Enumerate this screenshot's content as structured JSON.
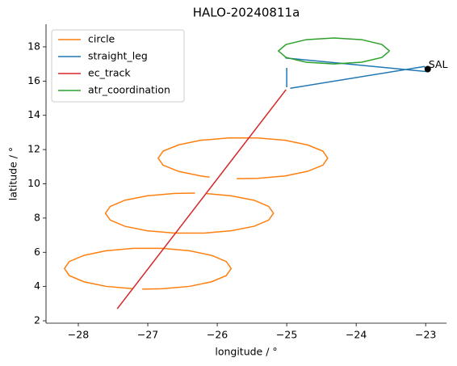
{
  "chart_data": {
    "type": "line",
    "title": "HALO-20240811a",
    "xlabel": "longitude / °",
    "ylabel": "latitude / °",
    "xlim": [
      -28.465,
      -22.7
    ],
    "ylim": [
      1.86,
      19.32
    ],
    "xticks": [
      {
        "value": -28,
        "label": "−28"
      },
      {
        "value": -27,
        "label": "−27"
      },
      {
        "value": -26,
        "label": "−26"
      },
      {
        "value": -25,
        "label": "−25"
      },
      {
        "value": -24,
        "label": "−24"
      },
      {
        "value": -23,
        "label": "−23"
      }
    ],
    "yticks": [
      2,
      4,
      6,
      8,
      10,
      12,
      14,
      16,
      18
    ],
    "legend": "upper left",
    "series": [
      {
        "name": "circle",
        "color": "#ff7f0e",
        "x": [
          -25.72,
          -25.42,
          -25.02,
          -24.7,
          -24.48,
          -24.41,
          -24.48,
          -24.7,
          -25.02,
          -25.42,
          -25.84,
          -26.24,
          -26.56,
          -26.78,
          -26.85,
          -26.78,
          -26.56,
          -26.24,
          -26.11,
          null,
          -26.32,
          -26.61,
          -27.01,
          -27.33,
          -27.54,
          -27.61,
          -27.54,
          -27.33,
          -27.01,
          -26.61,
          -26.19,
          -25.8,
          -25.47,
          -25.26,
          -25.19,
          -25.26,
          -25.47,
          -25.8,
          -26.15,
          null,
          -27.08,
          -26.79,
          -26.4,
          -26.08,
          -25.87,
          -25.8,
          -25.87,
          -26.08,
          -26.4,
          -26.79,
          -27.21,
          -27.6,
          -27.92,
          -28.13,
          -28.2,
          -28.13,
          -27.92,
          -27.6,
          -27.21
        ],
        "values": [
          10.3,
          10.32,
          10.46,
          10.73,
          11.09,
          11.5,
          11.91,
          12.27,
          12.54,
          12.68,
          12.68,
          12.54,
          12.27,
          11.91,
          11.5,
          11.09,
          10.73,
          10.46,
          10.39,
          null,
          9.46,
          9.44,
          9.3,
          9.04,
          8.68,
          8.28,
          7.88,
          7.52,
          7.26,
          7.12,
          7.12,
          7.26,
          7.52,
          7.88,
          8.28,
          8.68,
          9.04,
          9.3,
          9.43,
          null,
          3.85,
          3.87,
          4.01,
          4.28,
          4.64,
          5.05,
          5.46,
          5.82,
          6.09,
          6.23,
          6.23,
          6.09,
          5.82,
          5.46,
          5.05,
          4.64,
          4.28,
          4.01,
          3.87
        ]
      },
      {
        "name": "straight_leg",
        "color": "#1f77b4",
        "x": [
          -25.0,
          -25.0,
          null,
          -24.95,
          -23.02,
          -22.97,
          -25.02
        ],
        "values": [
          16.77,
          15.64,
          null,
          15.58,
          16.85,
          16.55,
          17.35
        ]
      },
      {
        "name": "ec_track",
        "color": "#d62728",
        "x": [
          -27.44,
          -25.01
        ],
        "values": [
          2.7,
          15.5
        ]
      },
      {
        "name": "atr_coordination",
        "color": "#2ca02c",
        "x": [
          -23.52,
          -23.63,
          -23.92,
          -24.32,
          -24.72,
          -25.01,
          -25.12,
          -25.01,
          -24.72,
          -24.32,
          -23.92,
          -23.63,
          -23.52
        ],
        "values": [
          17.76,
          18.14,
          18.42,
          18.52,
          18.42,
          18.14,
          17.76,
          17.38,
          17.1,
          17.0,
          17.1,
          17.38,
          17.76
        ]
      }
    ],
    "annotations": [
      {
        "text": "SAL",
        "x": -22.97,
        "y": 16.7,
        "color": "#000000"
      }
    ]
  }
}
